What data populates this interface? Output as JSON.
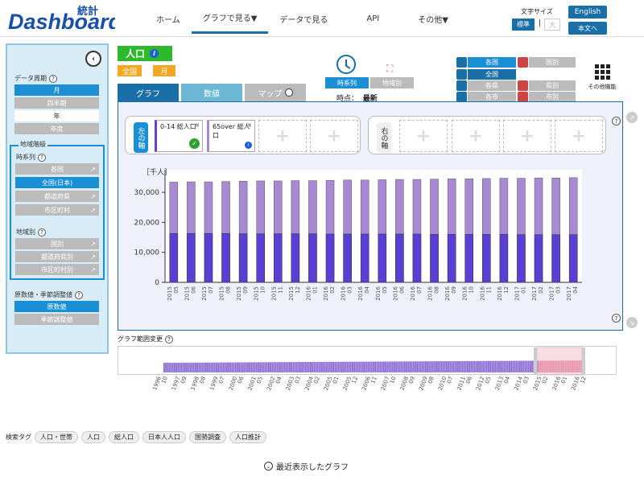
{
  "header": {
    "logo_text": "Dashboard",
    "logo_badge": "統計",
    "nav": [
      {
        "label": "ホーム"
      },
      {
        "label": "グラフで見る▼"
      },
      {
        "label": "データで見る"
      },
      {
        "label": "API"
      },
      {
        "label": "その他▼"
      }
    ],
    "font_size_label": "文字サイズ",
    "font_std": "標準",
    "font_sep": "|",
    "font_big": "大",
    "english": "English",
    "to_main": "本文へ"
  },
  "sidebar": {
    "period_label": "データ周期",
    "periods": [
      "月",
      "四半期",
      "年",
      "年度"
    ],
    "region_level": "地域階級",
    "timeseries_label": "時系列",
    "ts_items": [
      "各国",
      "全国(日本)",
      "都道府県",
      "市区町村"
    ],
    "regional_label": "地域別",
    "reg_items": [
      "国別",
      "都道府県別",
      "市区町村別"
    ],
    "raw_label": "原数値・季節調整値",
    "raw_items": [
      "原数値",
      "季節調整値"
    ]
  },
  "main": {
    "title": "人口",
    "tag1": "全国",
    "tag2": "月",
    "tabs": [
      "グラフ",
      "数値",
      "マップ"
    ],
    "ts_btn": "時系列",
    "region_btn": "地域別",
    "timepoint_label": "時点：",
    "timepoint_value": "最新",
    "region_grid": [
      "各国",
      "国別",
      "全国",
      "各県",
      "県別",
      "各市",
      "市別"
    ],
    "other_func": "その他機能"
  },
  "axes": {
    "left_label": "左の軸",
    "right_label": "右の軸",
    "series": [
      {
        "name": "0-14 総人口",
        "color": "#5a3fd4"
      },
      {
        "name": "65over 総人口",
        "color": "#a889d4"
      }
    ]
  },
  "chart_data": {
    "type": "bar",
    "ylabel": "［千人］",
    "ylim": [
      0,
      37000
    ],
    "yticks": [
      "0",
      "10,000",
      "20,000",
      "30,000"
    ],
    "categories": [
      "2015 05",
      "2015 06",
      "2015 07",
      "2015 08",
      "2015 09",
      "2015 10",
      "2015 11",
      "2015 12",
      "2016 01",
      "2016 02",
      "2016 03",
      "2016 04",
      "2016 05",
      "2016 06",
      "2016 07",
      "2016 08",
      "2016 09",
      "2016 10",
      "2016 11",
      "2016 12",
      "2017 01",
      "2017 02",
      "2017 03",
      "2017 04"
    ],
    "series": [
      {
        "name": "0-14 総人口",
        "values": [
          16300,
          16300,
          16300,
          16300,
          16200,
          16200,
          16200,
          16200,
          16200,
          16100,
          16100,
          16100,
          16100,
          16100,
          16100,
          16000,
          16000,
          16000,
          16000,
          16000,
          15900,
          15900,
          15900,
          15900
        ],
        "color": "#5a3fd4"
      },
      {
        "name": "65over 総人口",
        "values": [
          33400,
          33500,
          33500,
          33600,
          33700,
          33800,
          33800,
          33900,
          33900,
          34000,
          34100,
          34100,
          34200,
          34300,
          34300,
          34400,
          34500,
          34500,
          34600,
          34700,
          34700,
          34800,
          34800,
          34900
        ],
        "color": "#a889d4"
      }
    ]
  },
  "range": {
    "label": "グラフ範囲変更",
    "ticks": [
      "1996 10",
      "1997 09",
      "1998 08",
      "1999 07",
      "2000 06",
      "2001 05",
      "2002 04",
      "2003 03",
      "2004 02",
      "2005 01",
      "2005 12",
      "2006 11",
      "2007 10",
      "2008 09",
      "2009 08",
      "2010 07",
      "2011 06",
      "2012 05",
      "2013 04",
      "2014 03",
      "2015 02",
      "2016 01",
      "2016 12"
    ]
  },
  "footer": {
    "search_tag_label": "検索タグ",
    "tags": [
      "人口・世帯",
      "人口",
      "総人口",
      "日本人人口",
      "国勢調査",
      "人口推計"
    ],
    "recent": "最近表示したグラフ"
  }
}
